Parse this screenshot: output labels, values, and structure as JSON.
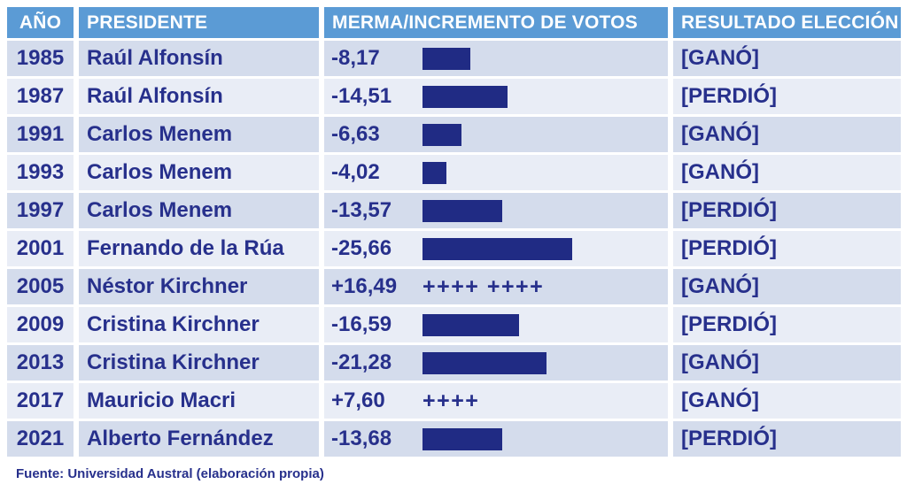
{
  "colors": {
    "header_bg": "#5B9BD5",
    "header_text": "#FFFFFF",
    "row_dark": "#D4DCEC",
    "row_light": "#E9EDF6",
    "text_navy": "#27308C",
    "bar_navy": "#202B84"
  },
  "table": {
    "columns": [
      {
        "key": "year",
        "label": "AÑO"
      },
      {
        "key": "president",
        "label": "PRESIDENTE"
      },
      {
        "key": "change",
        "label": "MERMA/INCREMENTO DE VOTOS"
      },
      {
        "key": "result",
        "label": "RESULTADO ELECCIÓN"
      }
    ],
    "rows": [
      {
        "year": "1985",
        "president": "Raúl Alfonsín",
        "change_label": "-8,17",
        "change_value": -8.17,
        "plus_marks": "",
        "result": "[GANÓ]"
      },
      {
        "year": "1987",
        "president": "Raúl Alfonsín",
        "change_label": "-14,51",
        "change_value": -14.51,
        "plus_marks": "",
        "result": "[PERDIÓ]"
      },
      {
        "year": "1991",
        "president": "Carlos Menem",
        "change_label": "-6,63",
        "change_value": -6.63,
        "plus_marks": "",
        "result": "[GANÓ]"
      },
      {
        "year": "1993",
        "president": "Carlos Menem",
        "change_label": "-4,02",
        "change_value": -4.02,
        "plus_marks": "",
        "result": "[GANÓ]"
      },
      {
        "year": "1997",
        "president": "Carlos Menem",
        "change_label": "-13,57",
        "change_value": -13.57,
        "plus_marks": "",
        "result": "[PERDIÓ]"
      },
      {
        "year": "2001",
        "president": "Fernando de la Rúa",
        "change_label": "-25,66",
        "change_value": -25.66,
        "plus_marks": "",
        "result": "[PERDIÓ]"
      },
      {
        "year": "2005",
        "president": "Néstor Kirchner",
        "change_label": "+16,49",
        "change_value": 16.49,
        "plus_marks": "++++ ++++",
        "result": "[GANÓ]"
      },
      {
        "year": "2009",
        "president": "Cristina Kirchner",
        "change_label": "-16,59",
        "change_value": -16.59,
        "plus_marks": "",
        "result": "[PERDIÓ]"
      },
      {
        "year": "2013",
        "president": "Cristina Kirchner",
        "change_label": "-21,28",
        "change_value": -21.28,
        "plus_marks": "",
        "result": "[GANÓ]"
      },
      {
        "year": "2017",
        "president": "Mauricio Macri",
        "change_label": "+7,60",
        "change_value": 7.6,
        "plus_marks": "++++",
        "result": "[GANÓ]"
      },
      {
        "year": "2021",
        "president": "Alberto Fernández",
        "change_label": "-13,68",
        "change_value": -13.68,
        "plus_marks": "",
        "result": "[PERDIÓ]"
      }
    ]
  },
  "footer": {
    "source": "Fuente: Universidad Austral (elaboración propia)"
  },
  "chart_data": {
    "type": "bar",
    "orientation": "horizontal",
    "title": "MERMA/INCREMENTO DE VOTOS",
    "categories": [
      "1985",
      "1987",
      "1991",
      "1993",
      "1997",
      "2001",
      "2005",
      "2009",
      "2013",
      "2017",
      "2021"
    ],
    "series_labels": [
      "Raúl Alfonsín",
      "Raúl Alfonsín",
      "Carlos Menem",
      "Carlos Menem",
      "Carlos Menem",
      "Fernando de la Rúa",
      "Néstor Kirchner",
      "Cristina Kirchner",
      "Cristina Kirchner",
      "Mauricio Macri",
      "Alberto Fernández"
    ],
    "values": [
      -8.17,
      -14.51,
      -6.63,
      -4.02,
      -13.57,
      -25.66,
      16.49,
      -16.59,
      -21.28,
      7.6,
      -13.68
    ],
    "results": [
      "[GANÓ]",
      "[PERDIÓ]",
      "[GANÓ]",
      "[GANÓ]",
      "[PERDIÓ]",
      "[PERDIÓ]",
      "[GANÓ]",
      "[PERDIÓ]",
      "[GANÓ]",
      "[GANÓ]",
      "[PERDIÓ]"
    ],
    "note": "Negative values drawn as solid navy bars; positive values drawn as plus-sign marks",
    "source": "Fuente: Universidad Austral (elaboración propia)"
  }
}
